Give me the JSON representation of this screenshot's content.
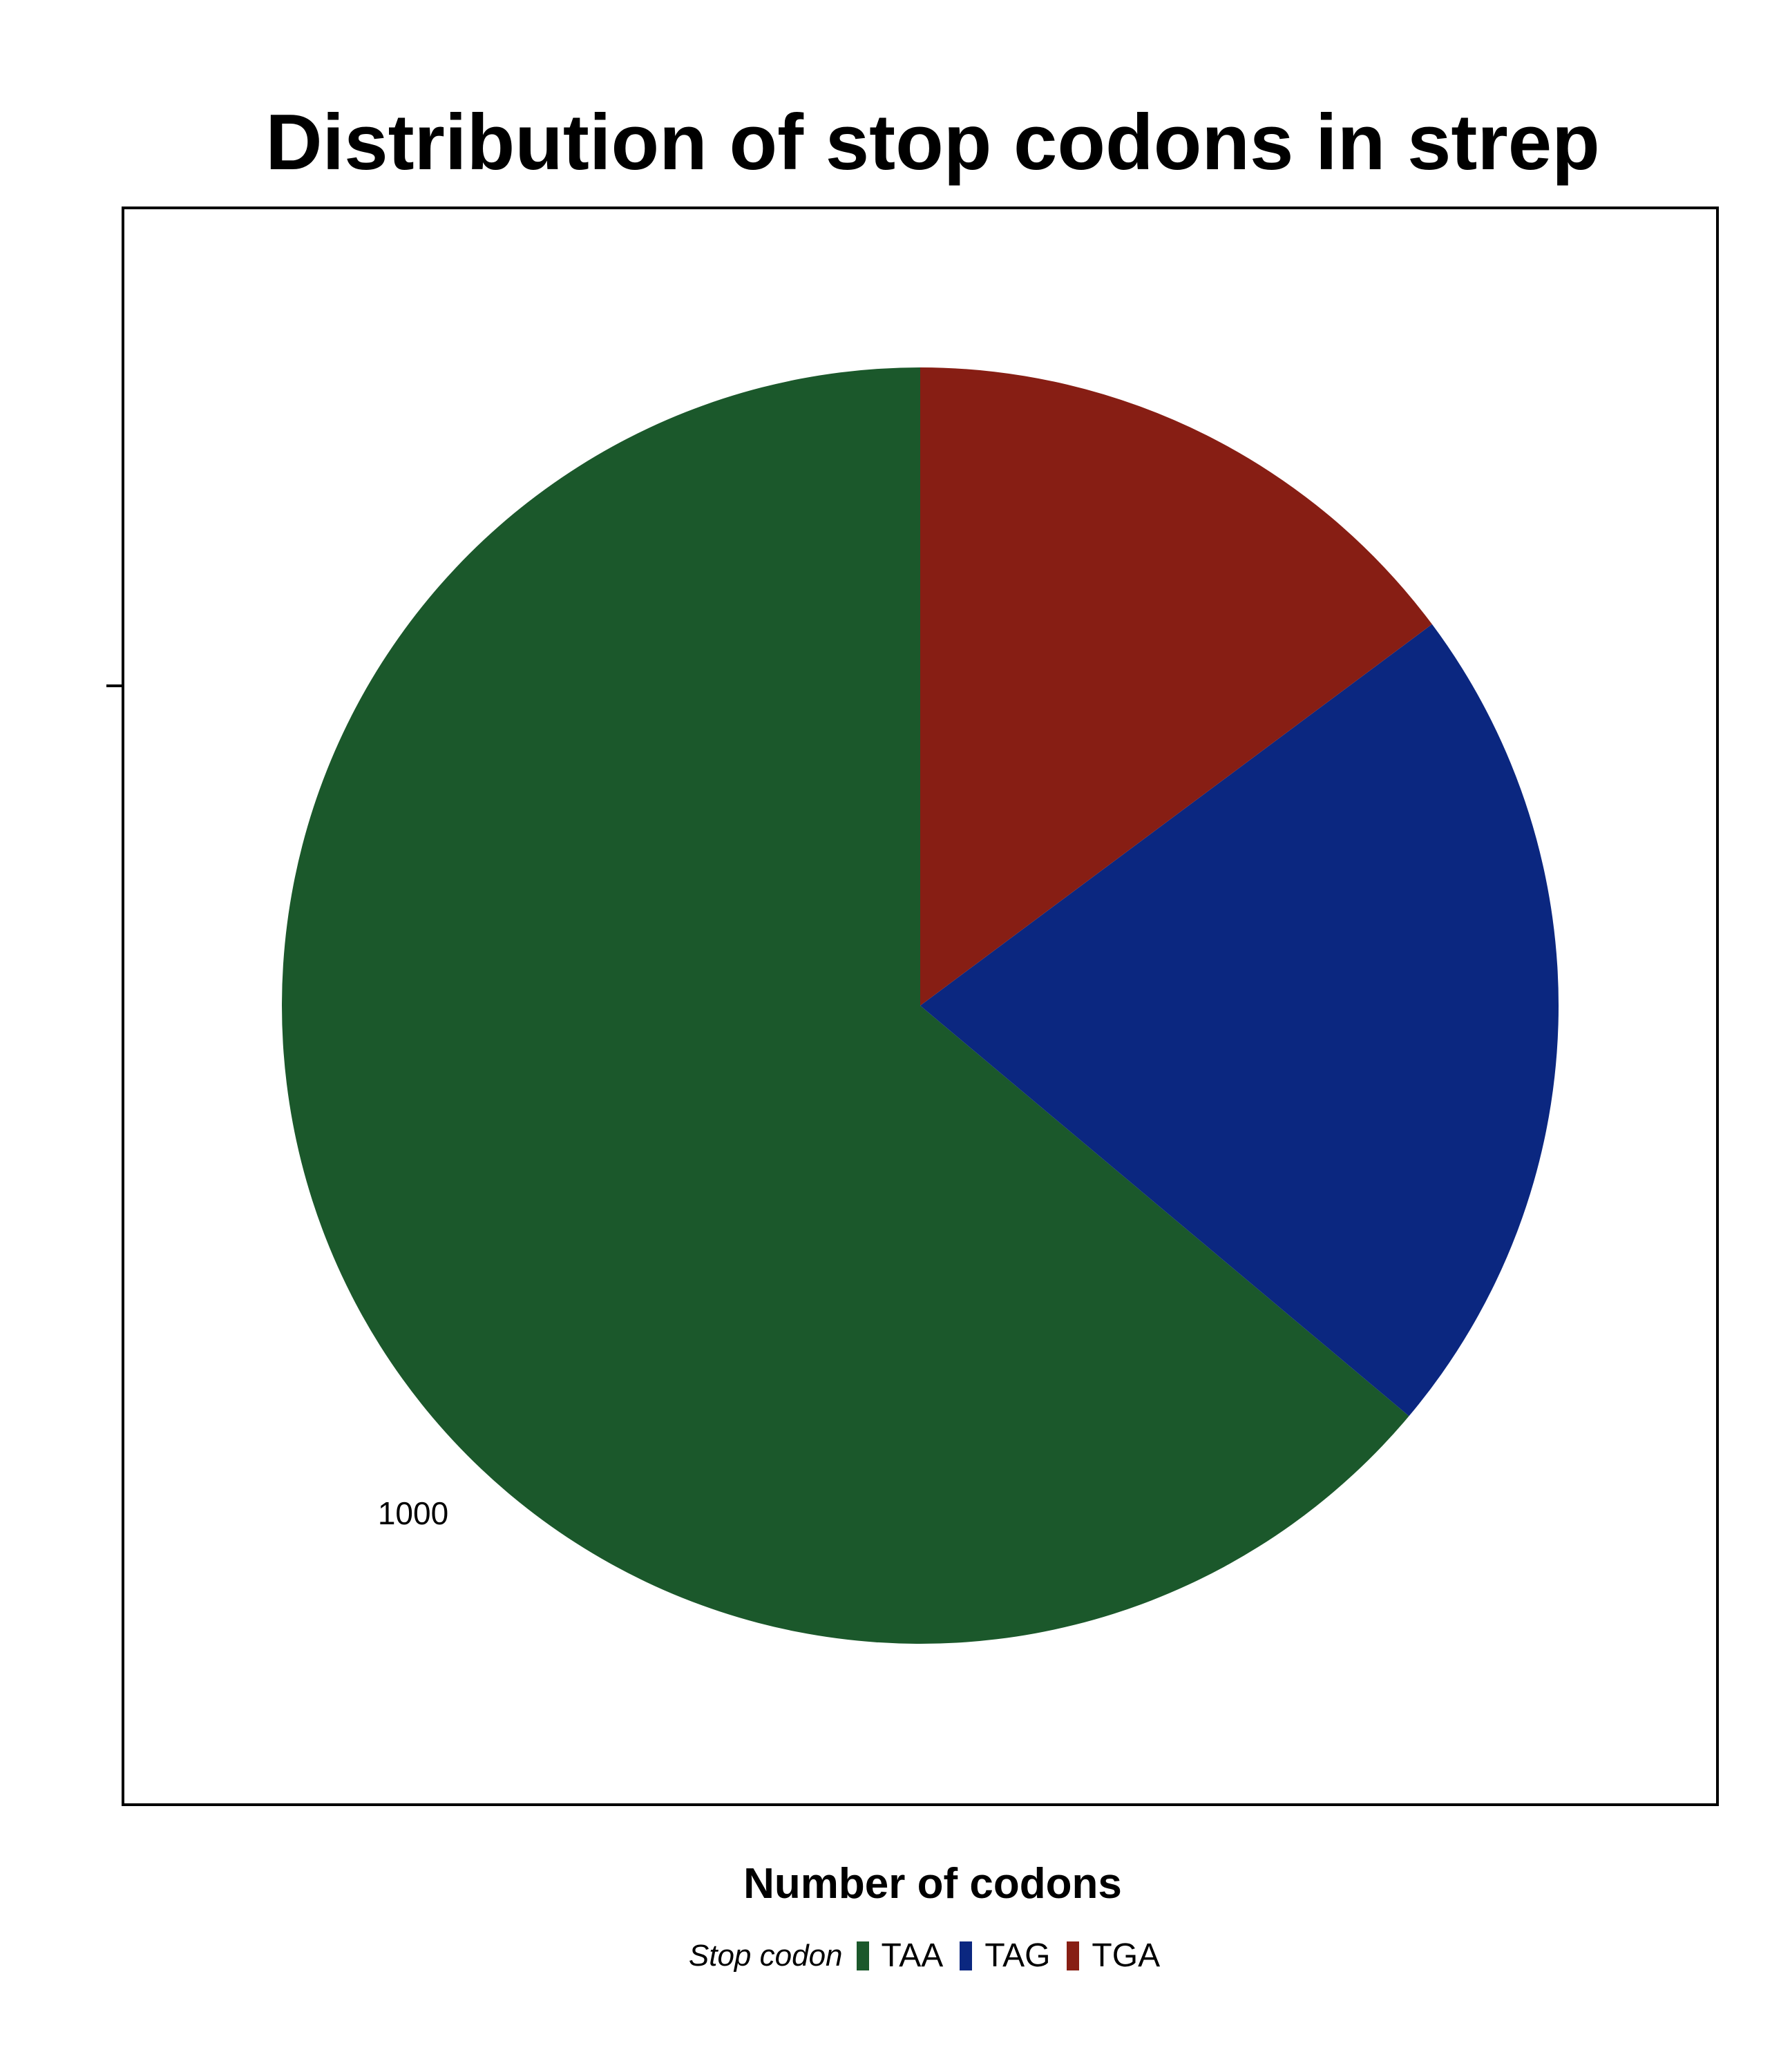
{
  "chart_data": {
    "type": "pie",
    "title": "Distribution of stop codons in strep",
    "xlabel": "Number of codons",
    "ylabel": "",
    "tick_labels": [
      "1000"
    ],
    "categories": [
      "TAA",
      "TAG",
      "TGA"
    ],
    "values": [
      1070,
      357,
      248
    ],
    "colors": [
      "#1B582B",
      "#0B2780",
      "#871E14"
    ],
    "legend": {
      "title": "Stop codon",
      "placement": "bottom",
      "entries": [
        "TAA",
        "TAG",
        "TGA"
      ]
    },
    "start_angle_deg": 0,
    "direction": "counterclockwise"
  }
}
